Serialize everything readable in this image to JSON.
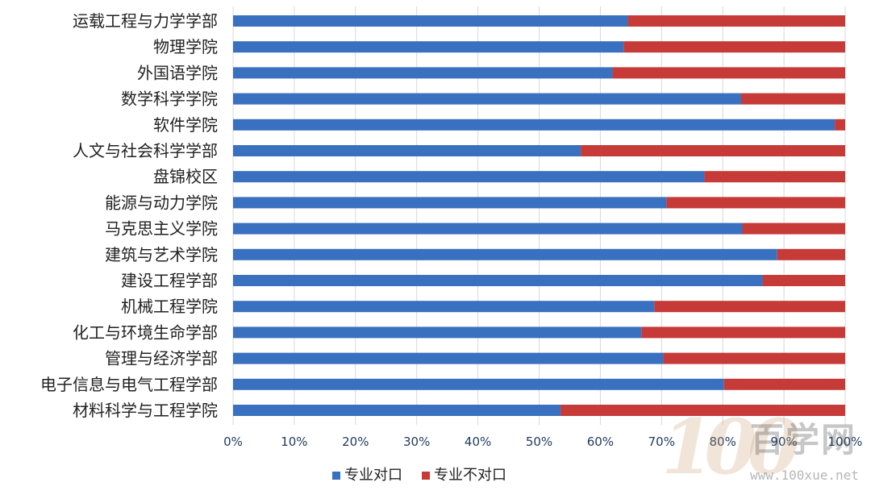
{
  "chart_data": {
    "type": "bar",
    "orientation": "horizontal",
    "stacked": "percent",
    "categories": [
      "运载工程与力学学部",
      "物理学院",
      "外国语学院",
      "数学科学学院",
      "软件学院",
      "人文与社会科学学部",
      "盘锦校区",
      "能源与动力学院",
      "马克思主义学院",
      "建筑与艺术学院",
      "建设工程学部",
      "机械工程学院",
      "化工与环境生命学部",
      "管理与经济学部",
      "电子信息与电气工程学部",
      "材料科学与工程学院"
    ],
    "series": [
      {
        "name": "专业对口",
        "color": "#3A70C0",
        "values": [
          64.5,
          63.8,
          62.0,
          83.0,
          98.3,
          56.8,
          77.0,
          70.8,
          83.2,
          88.9,
          86.5,
          68.8,
          66.7,
          70.3,
          80.2,
          53.5
        ]
      },
      {
        "name": "专业不对口",
        "color": "#C63A38",
        "values": [
          35.5,
          36.2,
          38.0,
          17.0,
          1.7,
          43.2,
          23.0,
          29.2,
          16.8,
          11.1,
          13.5,
          31.2,
          33.3,
          29.7,
          19.8,
          46.5
        ]
      }
    ],
    "xlim": [
      0,
      100
    ],
    "x_ticks": [
      "0%",
      "10%",
      "20%",
      "30%",
      "40%",
      "50%",
      "60%",
      "70%",
      "80%",
      "90%",
      "100%"
    ],
    "grid": true,
    "legend": "bottom",
    "title": "",
    "xlabel": "",
    "ylabel": ""
  },
  "watermark": {
    "logo": "100",
    "name": "百学网",
    "url": "www.100xue.net"
  }
}
